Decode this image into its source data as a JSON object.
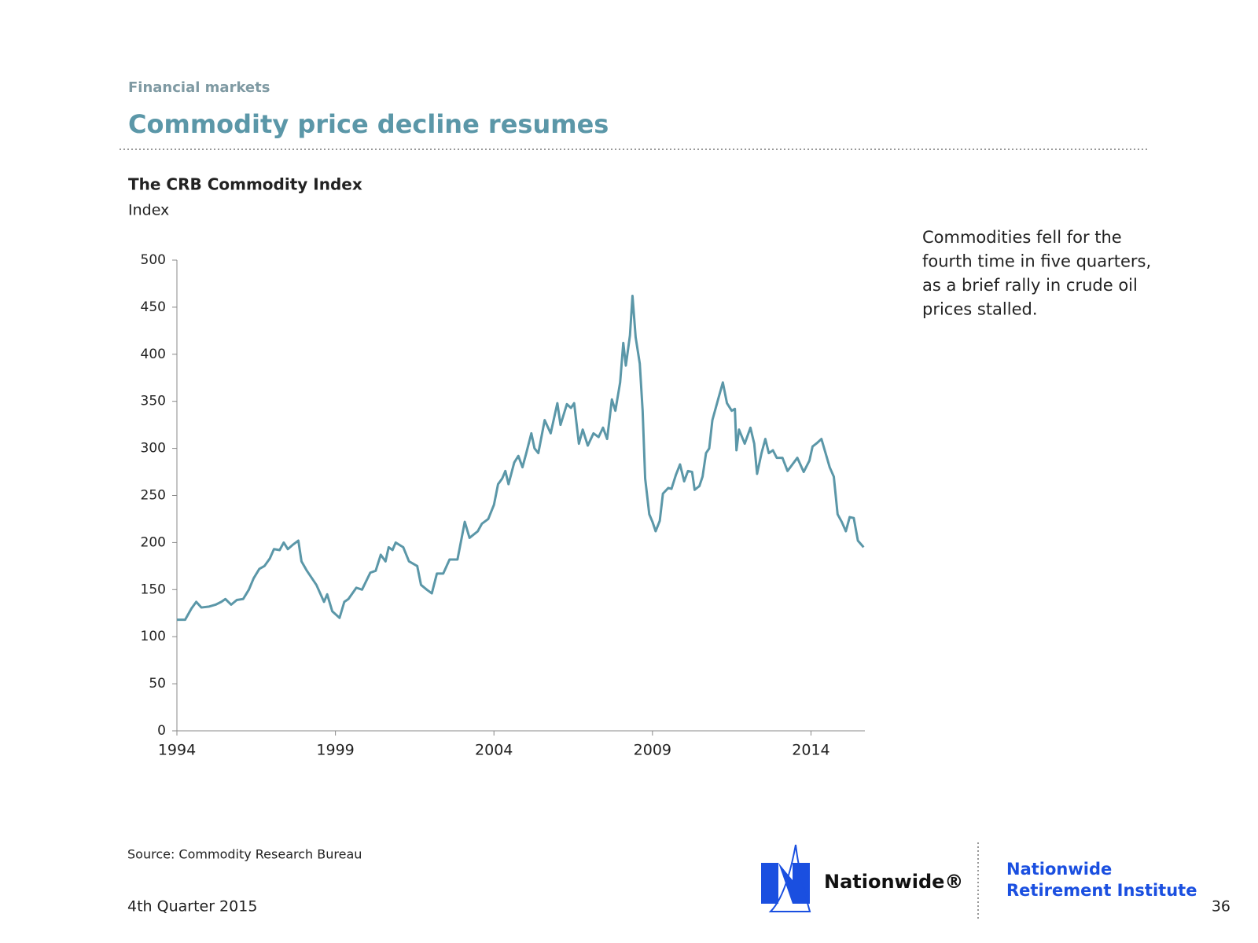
{
  "header": {
    "section": "Financial markets",
    "title": "Commodity price decline resumes"
  },
  "chart_data": {
    "type": "line",
    "title": "The CRB Commodity Index",
    "y_label": "Index",
    "xlim": [
      1994,
      2015.7
    ],
    "xticks": [
      1994,
      1999,
      2004,
      2009,
      2014
    ],
    "ylim": [
      0,
      500
    ],
    "yticks": [
      0,
      50,
      100,
      150,
      200,
      250,
      300,
      350,
      400,
      450,
      500
    ],
    "series": [
      {
        "name": "CRB Commodity Index",
        "color": "#5b97a8",
        "x": [
          1994,
          1994.26,
          1994.46,
          1994.61,
          1994.77,
          1995.02,
          1995.22,
          1995.4,
          1995.53,
          1995.71,
          1995.89,
          1996.09,
          1996.27,
          1996.42,
          1996.6,
          1996.76,
          1996.93,
          1997.06,
          1997.24,
          1997.37,
          1997.5,
          1997.67,
          1997.83,
          1997.93,
          1998.1,
          1998.4,
          1998.64,
          1998.74,
          1998.9,
          1999.13,
          1999.28,
          1999.41,
          1999.66,
          1999.84,
          2000.1,
          2000.27,
          2000.43,
          2000.58,
          2000.68,
          2000.8,
          2000.9,
          2001.14,
          2001.32,
          2001.58,
          2001.7,
          2001.88,
          2002.04,
          2002.2,
          2002.4,
          2002.6,
          2002.85,
          2003.08,
          2003.23,
          2003.49,
          2003.62,
          2003.82,
          2004.0,
          2004.13,
          2004.26,
          2004.36,
          2004.46,
          2004.64,
          2004.77,
          2004.9,
          2005.02,
          2005.18,
          2005.28,
          2005.4,
          2005.6,
          2005.79,
          2006.0,
          2006.1,
          2006.3,
          2006.43,
          2006.53,
          2006.68,
          2006.8,
          2006.96,
          2007.14,
          2007.3,
          2007.44,
          2007.57,
          2007.72,
          2007.83,
          2007.98,
          2008.08,
          2008.16,
          2008.29,
          2008.37,
          2008.47,
          2008.6,
          2008.69,
          2008.77,
          2008.9,
          2009.0,
          2009.1,
          2009.23,
          2009.33,
          2009.5,
          2009.6,
          2009.74,
          2009.87,
          2010.0,
          2010.12,
          2010.25,
          2010.33,
          2010.48,
          2010.58,
          2010.69,
          2010.79,
          2010.89,
          2011.07,
          2011.22,
          2011.35,
          2011.5,
          2011.6,
          2011.65,
          2011.73,
          2011.91,
          2012.09,
          2012.21,
          2012.3,
          2012.44,
          2012.56,
          2012.67,
          2012.8,
          2012.92,
          2013.1,
          2013.26,
          2013.57,
          2013.77,
          2013.95,
          2014.05,
          2014.2,
          2014.33,
          2014.46,
          2014.59,
          2014.72,
          2014.84,
          2014.97,
          2015.1,
          2015.22,
          2015.35,
          2015.48,
          2015.66
        ],
        "values": [
          118,
          118,
          130,
          137,
          131,
          132,
          134,
          137,
          140,
          134,
          139,
          140,
          150,
          162,
          172,
          175,
          183,
          193,
          192,
          200,
          193,
          198,
          202,
          180,
          170,
          155,
          137,
          145,
          127,
          120,
          137,
          140,
          152,
          150,
          168,
          170,
          187,
          180,
          195,
          192,
          200,
          195,
          180,
          175,
          155,
          150,
          146,
          167,
          167,
          182,
          182,
          222,
          205,
          212,
          220,
          225,
          240,
          262,
          268,
          276,
          262,
          285,
          292,
          280,
          295,
          316,
          300,
          295,
          330,
          316,
          348,
          325,
          347,
          343,
          348,
          305,
          320,
          303,
          316,
          312,
          322,
          310,
          352,
          340,
          370,
          412,
          388,
          420,
          462,
          418,
          390,
          340,
          268,
          230,
          222,
          212,
          223,
          252,
          258,
          257,
          272,
          283,
          265,
          276,
          275,
          256,
          260,
          270,
          295,
          300,
          330,
          352,
          370,
          348,
          340,
          342,
          298,
          320,
          305,
          322,
          305,
          273,
          295,
          310,
          295,
          298,
          290,
          290,
          276,
          290,
          275,
          287,
          302,
          306,
          310,
          295,
          280,
          270,
          230,
          222,
          212,
          227,
          226,
          202,
          195
        ]
      }
    ]
  },
  "annotation": [
    "Commodities fell for the",
    "fourth time in five quarters,",
    "as a brief rally in crude oil",
    "prices stalled."
  ],
  "footer": {
    "source": "Source: Commodity Research Bureau",
    "date": "4th Quarter 2015",
    "brand": "Nationwide®",
    "institute": [
      "Nationwide",
      "Retirement Institute"
    ],
    "page": "36"
  }
}
